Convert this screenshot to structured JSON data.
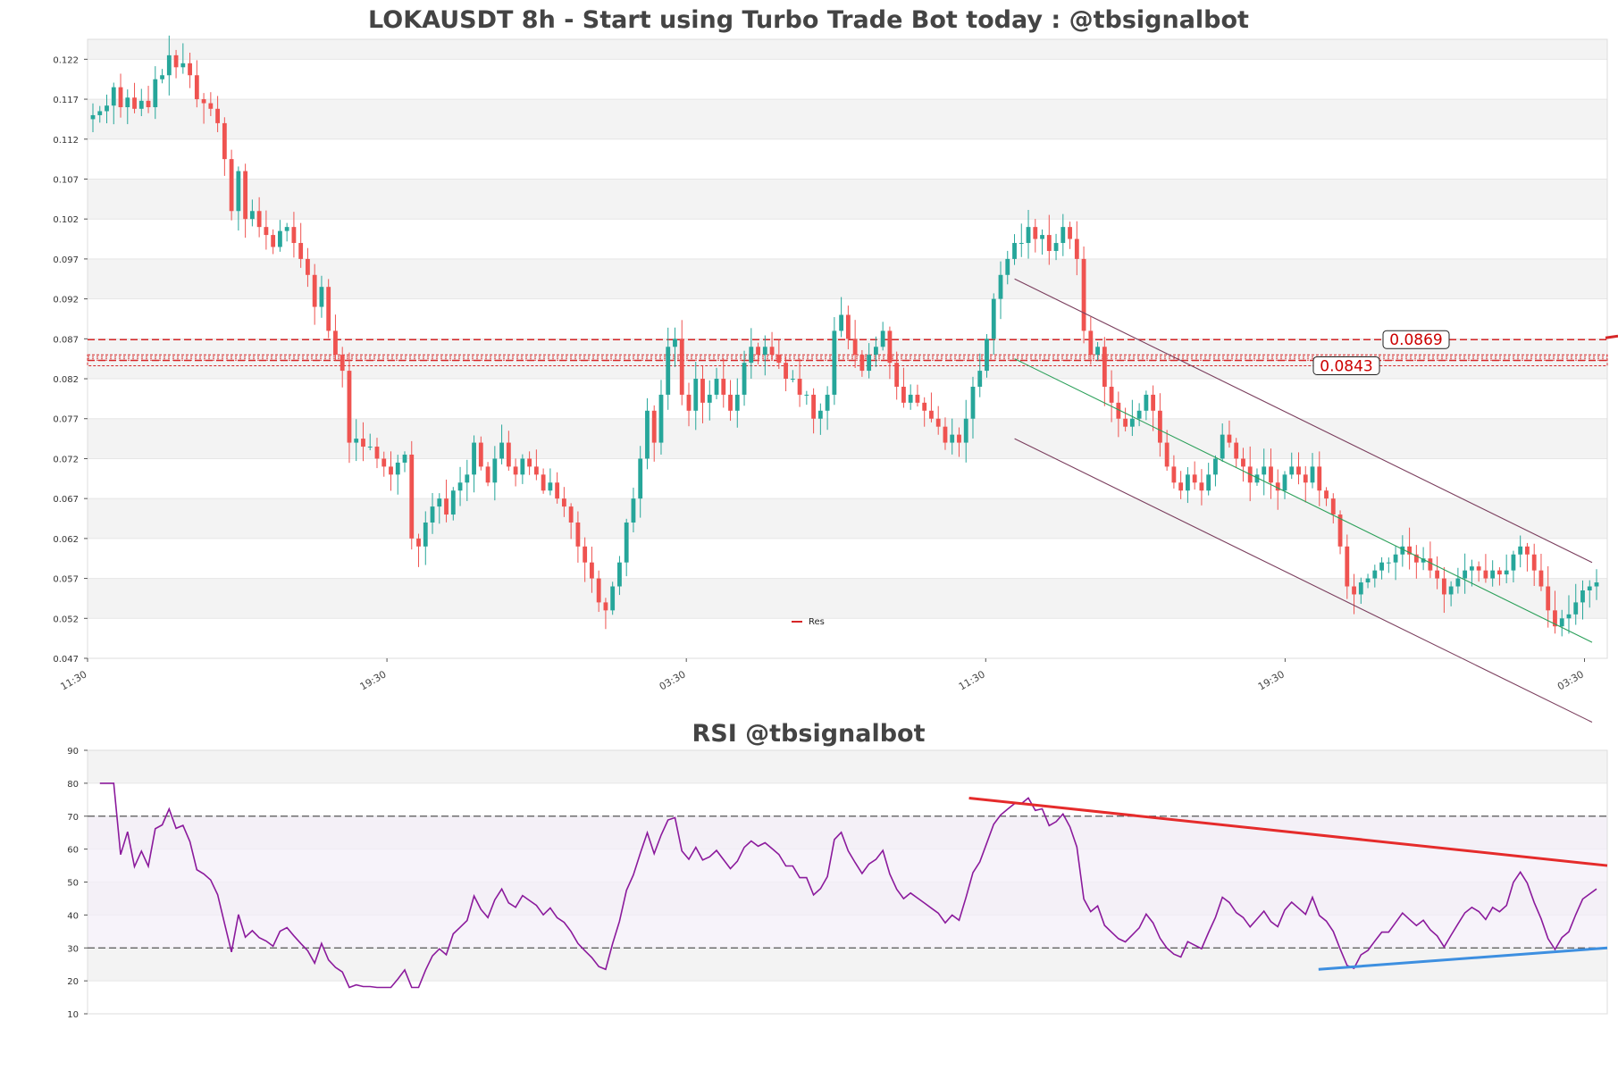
{
  "chart_data": [
    {
      "type": "candlestick",
      "title": "LOKAUSDT 8h - Start using Turbo Trade Bot today : @tbsignalbot",
      "y_ticks": [
        "0.047",
        "0.052",
        "0.057",
        "0.062",
        "0.067",
        "0.072",
        "0.077",
        "0.082",
        "0.087",
        "0.092",
        "0.097",
        "0.102",
        "0.107",
        "0.112",
        "0.117",
        "0.122"
      ],
      "ylim": [
        0.047,
        0.1245
      ],
      "x_ticks": [
        "11:30",
        "19:30",
        "03:30",
        "11:30",
        "19:30",
        "03:30"
      ],
      "grid": "horizontal bands",
      "resistance_levels": [
        {
          "label": "0.0869",
          "value": 0.0869
        },
        {
          "label": "0.0843",
          "value": 0.0843
        }
      ],
      "legend": [
        {
          "label": "Res",
          "color": "#d62728"
        }
      ],
      "legend_position": "lower-center",
      "colors": {
        "up": "#26a69a",
        "down": "#ef5350",
        "level": "#d62728",
        "channel": "#7b3f5e",
        "trend": "#2ca05a"
      },
      "series": [
        {
          "name": "close",
          "values": [
            0.115,
            0.1155,
            0.1162,
            0.1185,
            0.116,
            0.1172,
            0.1158,
            0.1168,
            0.116,
            0.1195,
            0.12,
            0.1225,
            0.121,
            0.1215,
            0.12,
            0.117,
            0.1165,
            0.1158,
            0.114,
            0.1095,
            0.103,
            0.108,
            0.102,
            0.103,
            0.101,
            0.1,
            0.0985,
            0.1005,
            0.101,
            0.099,
            0.097,
            0.095,
            0.091,
            0.0935,
            0.088,
            0.085,
            0.083,
            0.074,
            0.0745,
            0.0735,
            0.0735,
            0.072,
            0.071,
            0.07,
            0.0715,
            0.0725,
            0.062,
            0.061,
            0.064,
            0.066,
            0.067,
            0.065,
            0.068,
            0.069,
            0.07,
            0.074,
            0.071,
            0.069,
            0.072,
            0.074,
            0.071,
            0.07,
            0.072,
            0.071,
            0.07,
            0.068,
            0.069,
            0.067,
            0.066,
            0.064,
            0.061,
            0.059,
            0.057,
            0.054,
            0.053,
            0.056,
            0.059,
            0.064,
            0.067,
            0.072,
            0.078,
            0.074,
            0.08,
            0.086,
            0.087,
            0.08,
            0.078,
            0.082,
            0.079,
            0.08,
            0.082,
            0.08,
            0.078,
            0.08,
            0.084,
            0.086,
            0.085,
            0.086,
            0.085,
            0.084,
            0.082,
            0.082,
            0.08,
            0.08,
            0.077,
            0.078,
            0.08,
            0.088,
            0.09,
            0.087,
            0.085,
            0.083,
            0.085,
            0.086,
            0.088,
            0.084,
            0.081,
            0.079,
            0.08,
            0.079,
            0.078,
            0.077,
            0.076,
            0.074,
            0.075,
            0.074,
            0.077,
            0.081,
            0.083,
            0.087,
            0.092,
            0.095,
            0.097,
            0.099,
            0.099,
            0.101,
            0.0995,
            0.1,
            0.098,
            0.099,
            0.101,
            0.0995,
            0.097,
            0.088,
            0.085,
            0.086,
            0.081,
            0.079,
            0.077,
            0.076,
            0.077,
            0.078,
            0.08,
            0.078,
            0.074,
            0.071,
            0.069,
            0.068,
            0.07,
            0.069,
            0.068,
            0.07,
            0.072,
            0.075,
            0.074,
            0.072,
            0.071,
            0.069,
            0.07,
            0.071,
            0.069,
            0.068,
            0.07,
            0.071,
            0.07,
            0.069,
            0.071,
            0.068,
            0.067,
            0.065,
            0.061,
            0.056,
            0.055,
            0.0565,
            0.057,
            0.058,
            0.059,
            0.059,
            0.06,
            0.061,
            0.06,
            0.059,
            0.0595,
            0.058,
            0.057,
            0.055,
            0.056,
            0.057,
            0.058,
            0.0585,
            0.058,
            0.057,
            0.058,
            0.0575,
            0.058,
            0.06,
            0.061,
            0.06,
            0.058,
            0.056,
            0.053,
            0.051,
            0.052,
            0.0525,
            0.054,
            0.0555,
            0.056,
            0.0565
          ]
        }
      ],
      "overlay_lines": [
        {
          "name": "channel-upper",
          "x": [
            0.61,
            0.99
          ],
          "y": [
            0.0945,
            0.059
          ]
        },
        {
          "name": "channel-lower",
          "x": [
            0.61,
            0.99
          ],
          "y": [
            0.0745,
            0.039
          ]
        },
        {
          "name": "trend-mid",
          "x": [
            0.61,
            0.99
          ],
          "y": [
            0.0845,
            0.049
          ]
        }
      ]
    },
    {
      "type": "line",
      "title": "RSI @tbsignalbot",
      "y_ticks": [
        "10",
        "20",
        "30",
        "40",
        "50",
        "60",
        "70",
        "80",
        "90"
      ],
      "ylim": [
        10,
        90
      ],
      "reference_lines": [
        70,
        30
      ],
      "colors": {
        "rsi": "#8b1a9c",
        "resistance": "#e52b2b",
        "support": "#3d8fe0",
        "reference": "#555555"
      },
      "series": [
        {
          "name": "RSI",
          "values": []
        }
      ],
      "trend_lines": [
        {
          "name": "rsi-resistance",
          "x": [
            0.58,
            1.0
          ],
          "y": [
            75.5,
            55
          ]
        },
        {
          "name": "rsi-support",
          "x": [
            0.81,
            1.0
          ],
          "y": [
            23.5,
            30
          ]
        }
      ]
    }
  ]
}
